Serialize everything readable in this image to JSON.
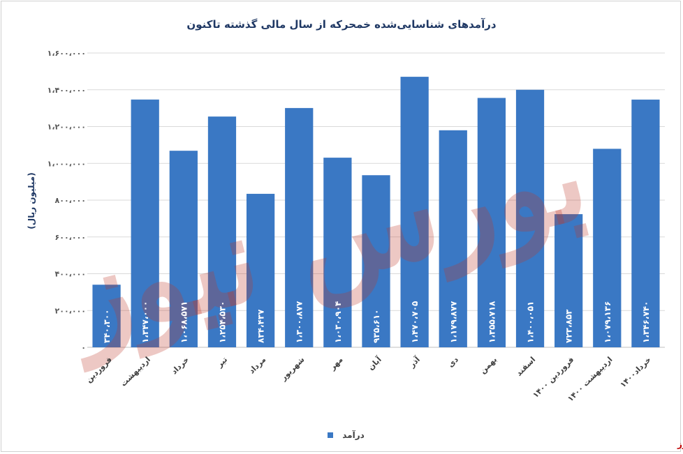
{
  "chart_data": {
    "type": "bar",
    "title": "درآمدهای شناسایی‌شده خمحرکه از سال مالی گذشته تاکنون",
    "ylabel": "(میلیون ریال)",
    "xlabel": "",
    "ylim": [
      0,
      1600000
    ],
    "yticks": [
      0,
      200000,
      400000,
      600000,
      800000,
      1000000,
      1200000,
      1400000,
      1600000
    ],
    "ytick_labels": [
      "۰",
      "۲۰۰،۰۰۰",
      "۴۰۰،۰۰۰",
      "۶۰۰،۰۰۰",
      "۸۰۰،۰۰۰",
      "۱،۰۰۰،۰۰۰",
      "۱،۲۰۰،۰۰۰",
      "۱،۴۰۰،۰۰۰",
      "۱،۶۰۰،۰۰۰"
    ],
    "grid": true,
    "legend_position": "bottom",
    "categories": [
      "فروردین",
      "اردیبهشت",
      "خرداد",
      "تیر",
      "مرداد",
      "شهریور",
      "مهر",
      "آبان",
      "آذر",
      "دی",
      "بهمن",
      "اسفند",
      "فروردین ۱۴۰۰",
      "اردیبهشت ۱۴۰۰",
      "خرداد۱۴۰۰"
    ],
    "series": [
      {
        "name": "درآمد",
        "color": "#3a78c4",
        "values": [
          340300,
          1347000,
          1068571,
          1254530,
          834437,
          1300877,
          1030904,
          935610,
          1470705,
          1179877,
          1355718,
          1400051,
          723853,
          1079136,
          1346740
        ],
        "data_labels": [
          "۳۴۰،۳۰۰",
          "۱،۳۴۷،۰۰۰",
          "۱،۰۶۸،۵۷۱",
          "۱،۲۵۴،۵۳۰",
          "۸۳۴،۴۳۷",
          "۱،۳۰۰،۸۷۷",
          "۱،۰۳۰،۹۰۴",
          "۹۳۵،۶۱۰",
          "۱،۴۷۰،۷۰۵",
          "۱،۱۷۹،۸۷۷",
          "۱،۳۵۵،۷۱۸",
          "۱،۴۰۰،۰۵۱",
          "۷۲۳،۸۵۳",
          "۱،۰۷۹،۱۳۶",
          "۱،۳۴۶،۷۴۰"
        ]
      }
    ]
  },
  "watermark": {
    "text": "بورس نیوز"
  },
  "footer": {
    "brand": "بورس نیوز",
    "brand_color": "#c00000"
  }
}
